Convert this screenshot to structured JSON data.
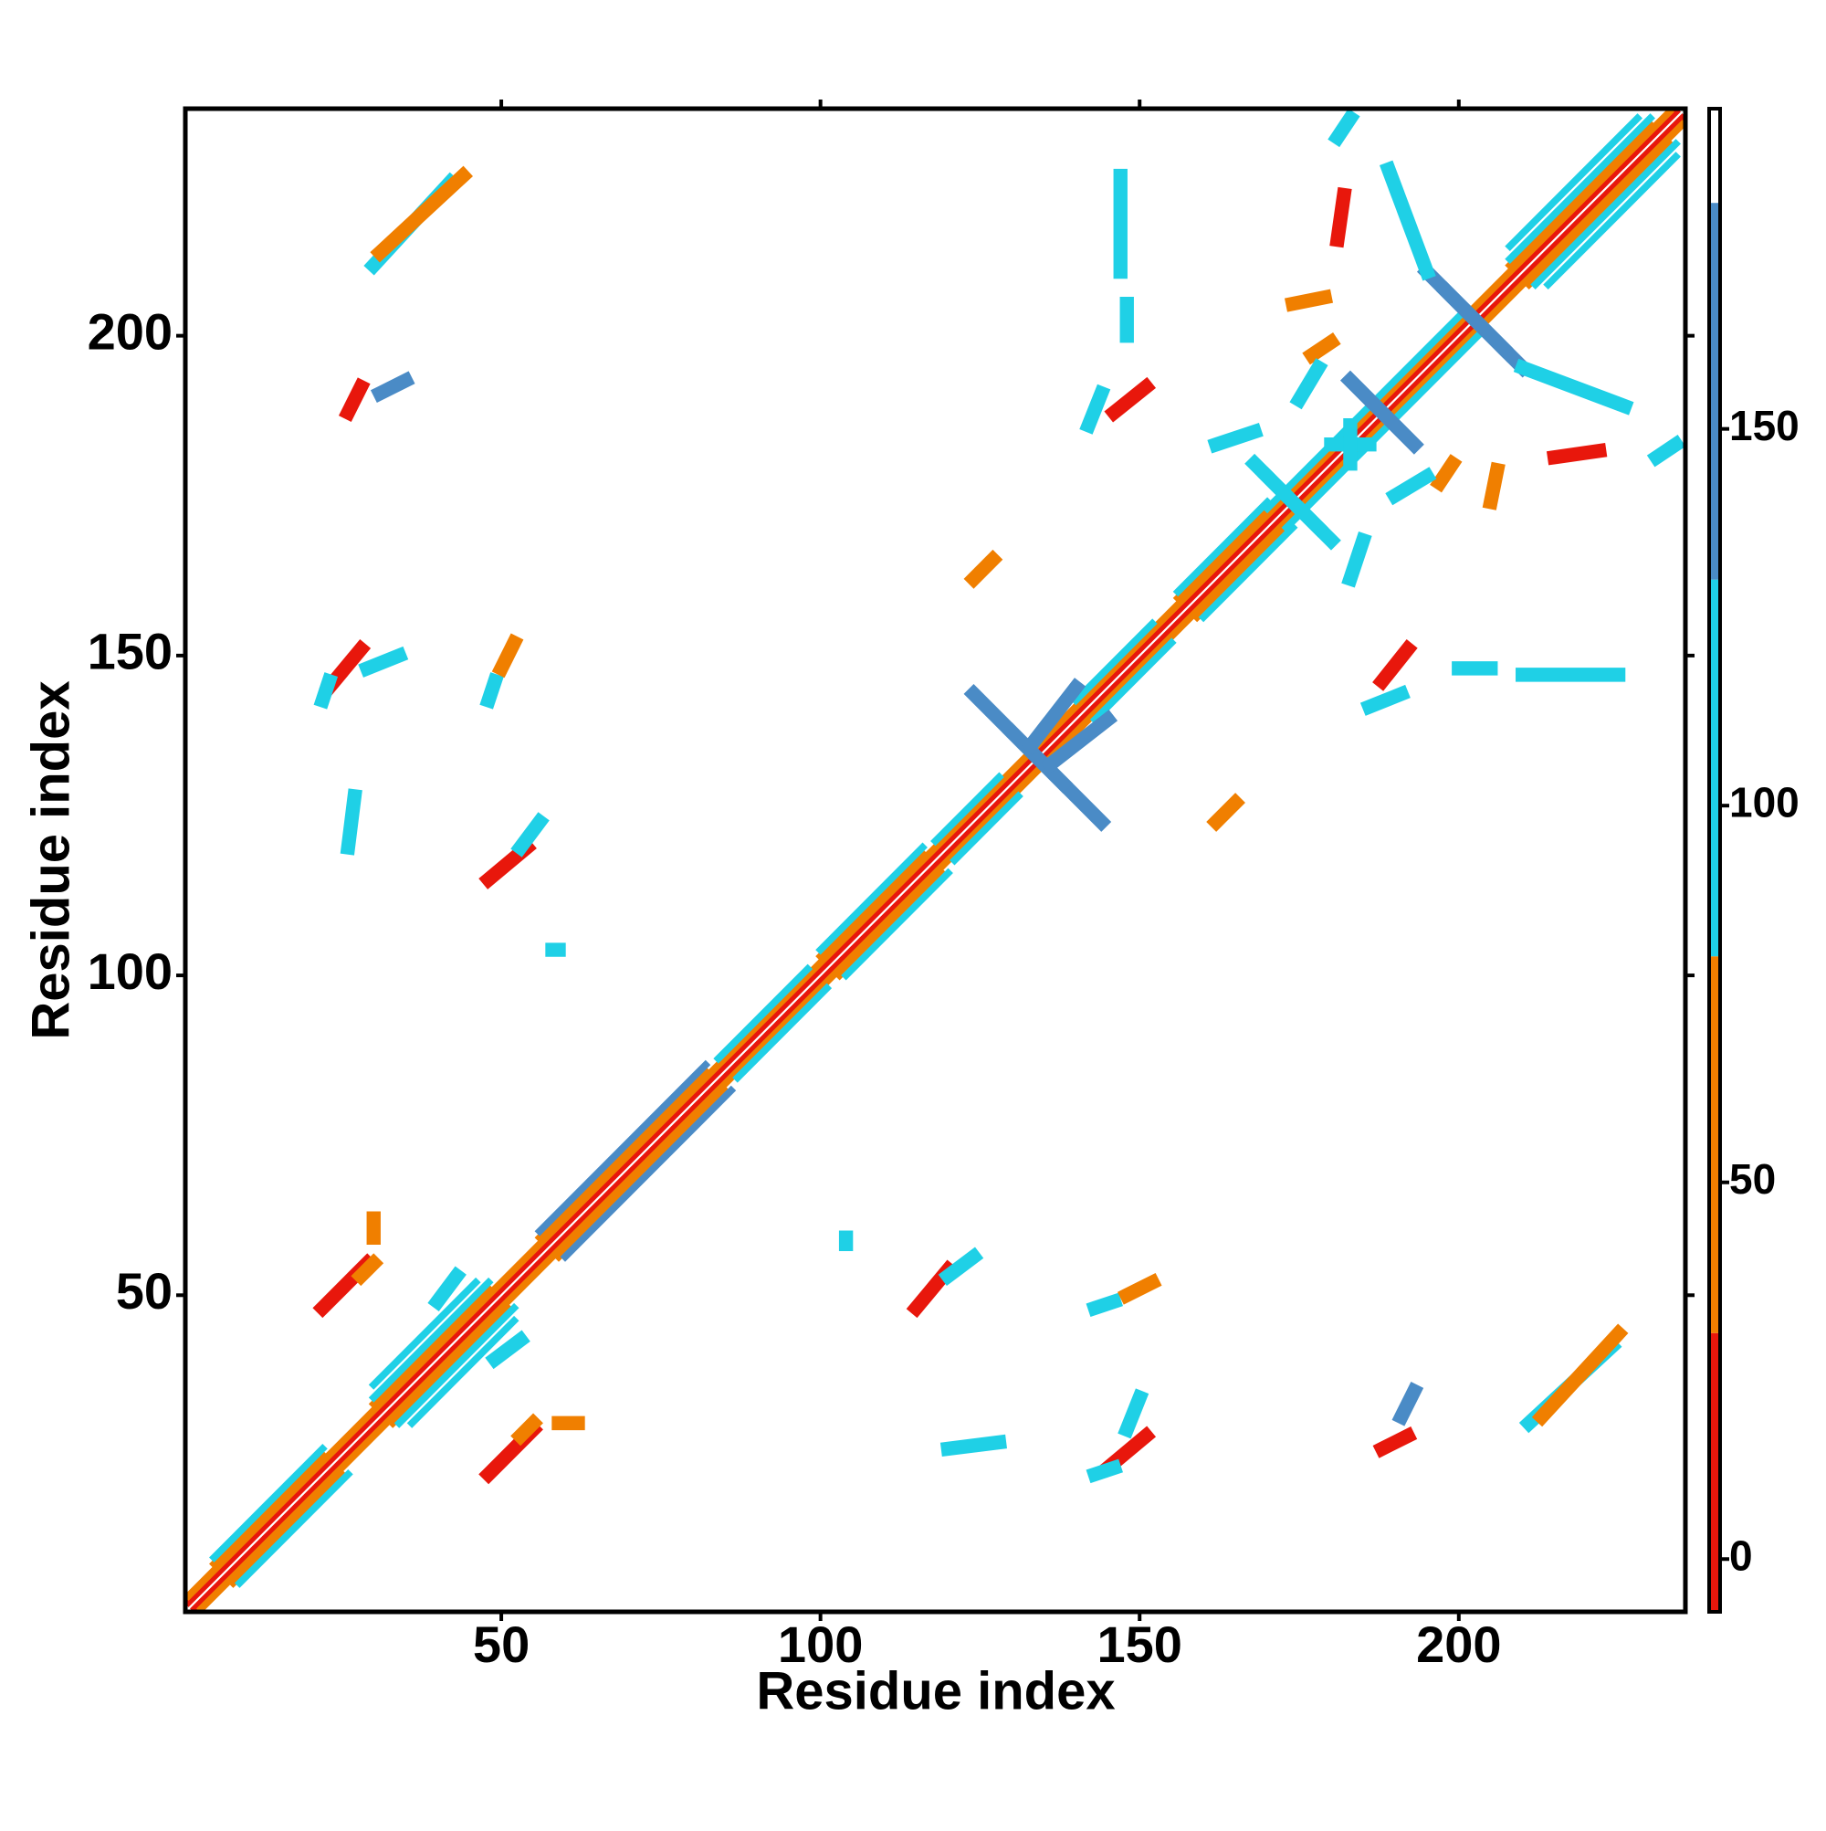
{
  "chart_data": {
    "type": "heatmap",
    "x_label": "Residue index",
    "y_label": "Residue index",
    "xlim": [
      0.5,
      235.5
    ],
    "ylim": [
      0.5,
      235.5
    ],
    "xticks": [
      50,
      100,
      150,
      200
    ],
    "yticks": [
      50,
      100,
      150,
      200
    ],
    "symmetric": true,
    "colorbar": {
      "lim": [
        -7,
        192.5
      ],
      "ticks": [
        0,
        50,
        100,
        150
      ],
      "segments": [
        {
          "range": [
            -7,
            30
          ],
          "color": "#e8170c"
        },
        {
          "range": [
            30,
            80
          ],
          "color": "#f07f00"
        },
        {
          "range": [
            80,
            130
          ],
          "color": "#1fd0e6"
        },
        {
          "range": [
            130,
            180
          ],
          "color": "#4a8bc6"
        },
        {
          "range": [
            180,
            192.5
          ],
          "color": "#ffffff"
        }
      ]
    },
    "diagonal": [
      {
        "x": [
          1,
          234
        ],
        "offset": 1,
        "value": 10
      },
      {
        "x": [
          1,
          233
        ],
        "offset": 2,
        "value": 60
      },
      {
        "x": [
          5,
          22
        ],
        "offset": 3,
        "value": 60
      },
      {
        "x": [
          5,
          22
        ],
        "offset": 4,
        "value": 100
      },
      {
        "x": [
          30,
          48
        ],
        "offset": 3,
        "value": 60
      },
      {
        "x": [
          30,
          48
        ],
        "offset": 4,
        "value": 100
      },
      {
        "x": [
          30,
          46
        ],
        "offset": 6,
        "value": 100
      },
      {
        "x": [
          56,
          82
        ],
        "offset": 3,
        "value": 60
      },
      {
        "x": [
          56,
          82
        ],
        "offset": 4,
        "value": 150
      },
      {
        "x": [
          100,
          116
        ],
        "offset": 3,
        "value": 60
      },
      {
        "x": [
          100,
          116
        ],
        "offset": 4,
        "value": 100
      },
      {
        "x": [
          156,
          170
        ],
        "offset": 3,
        "value": 60
      },
      {
        "x": [
          156,
          170
        ],
        "offset": 4,
        "value": 100
      },
      {
        "x": [
          208,
          230
        ],
        "offset": 3,
        "value": 60
      },
      {
        "x": [
          208,
          230
        ],
        "offset": 4,
        "value": 100
      },
      {
        "x": [
          208,
          228
        ],
        "offset": 6,
        "value": 100
      },
      {
        "x": [
          84,
          98
        ],
        "offset": 3,
        "value": 100
      },
      {
        "x": [
          118,
          128
        ],
        "offset": 3,
        "value": 100
      },
      {
        "x": [
          140,
          152
        ],
        "offset": 3,
        "value": 100
      },
      {
        "x": [
          170,
          200
        ],
        "offset": 3,
        "value": 100
      }
    ],
    "patches": [
      {
        "x": [
          48,
          55
        ],
        "y": [
          22,
          29
        ],
        "value": 10
      },
      {
        "x": [
          53,
          55
        ],
        "y": [
          28,
          30
        ],
        "value": 60
      },
      {
        "x": [
          59,
          62
        ],
        "y": [
          30,
          30
        ],
        "value": 60
      },
      {
        "x": [
          145,
          151
        ],
        "y": [
          23,
          28
        ],
        "value": 10
      },
      {
        "x": [
          143,
          146
        ],
        "y": [
          22,
          23
        ],
        "value": 100
      },
      {
        "x": [
          148,
          150
        ],
        "y": [
          29,
          34
        ],
        "value": 100
      },
      {
        "x": [
          115,
          120
        ],
        "y": [
          48,
          54
        ],
        "value": 10
      },
      {
        "x": [
          120,
          124
        ],
        "y": [
          53,
          56
        ],
        "value": 100
      },
      {
        "x": [
          188,
          192
        ],
        "y": [
          146,
          151
        ],
        "value": 10
      },
      {
        "x": [
          186,
          191
        ],
        "y": [
          142,
          144
        ],
        "value": 100
      },
      {
        "x": [
          211,
          224
        ],
        "y": [
          30,
          42
        ],
        "value": 100
      },
      {
        "x": [
          213,
          225
        ],
        "y": [
          31,
          44
        ],
        "value": 60
      },
      {
        "x": [
          197,
          199
        ],
        "y": [
          177,
          180
        ],
        "value": 60
      },
      {
        "x": [
          231,
          234
        ],
        "y": [
          181,
          183
        ],
        "value": 100
      },
      {
        "x": [
          215,
          222
        ],
        "y": [
          181,
          182
        ],
        "value": 10
      },
      {
        "x": [
          200,
          205
        ],
        "y": [
          148,
          148
        ],
        "value": 100
      },
      {
        "x": [
          210,
          225
        ],
        "y": [
          147,
          147
        ],
        "value": 100
      },
      {
        "x": [
          162,
          165
        ],
        "y": [
          124,
          127
        ],
        "value": 60
      },
      {
        "x": [
          104,
          104
        ],
        "y": [
          58,
          59
        ],
        "value": 100
      },
      {
        "x": [
          120,
          128
        ],
        "y": [
          26,
          27
        ],
        "value": 100
      },
      {
        "x": [
          143,
          146
        ],
        "y": [
          48,
          49
        ],
        "value": 100
      },
      {
        "x": [
          148,
          152
        ],
        "y": [
          50,
          52
        ],
        "value": 60
      },
      {
        "x": [
          191,
          193
        ],
        "y": [
          31,
          35
        ],
        "value": 150
      },
      {
        "x": [
          188,
          192
        ],
        "y": [
          26,
          28
        ],
        "value": 10
      },
      {
        "x": [
          130,
          144
        ],
        "y": [
          138,
          124
        ],
        "value": 150
      },
      {
        "x": [
          136,
          145
        ],
        "y": [
          133,
          140
        ],
        "value": 150
      },
      {
        "x": [
          198,
          210
        ],
        "y": [
          207,
          195
        ],
        "value": 150
      },
      {
        "x": [
          210,
          226
        ],
        "y": [
          195,
          189
        ],
        "value": 100
      },
      {
        "x": [
          183,
          193
        ],
        "y": [
          193,
          183
        ],
        "value": 150
      },
      {
        "x": [
          180,
          186
        ],
        "y": [
          183,
          183
        ],
        "value": 100
      },
      {
        "x": [
          170,
          180
        ],
        "y": [
          178,
          168
        ],
        "value": 100
      },
      {
        "x": [
          183,
          185
        ],
        "y": [
          162,
          168
        ],
        "value": 100
      },
      {
        "x": [
          190,
          195
        ],
        "y": [
          175,
          178
        ],
        "value": 100
      },
      {
        "x": [
          49,
          53
        ],
        "y": [
          40,
          43
        ],
        "value": 100
      },
      {
        "x": [
          205,
          206
        ],
        "y": [
          174,
          179
        ],
        "value": 60
      }
    ]
  }
}
